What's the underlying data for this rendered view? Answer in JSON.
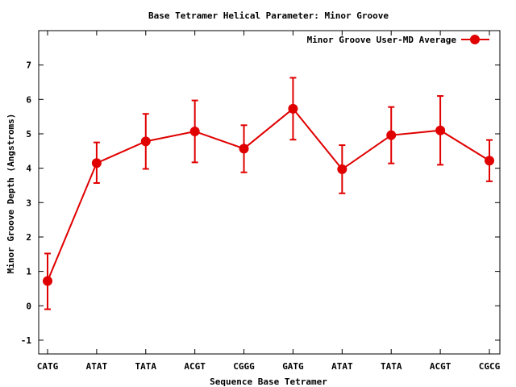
{
  "chart_data": {
    "type": "line",
    "title": "Base Tetramer Helical Parameter: Minor Groove",
    "xlabel": "Sequence Base Tetramer",
    "ylabel": "Minor Groove Depth (Angstroms)",
    "categories": [
      "CATG",
      "ATAT",
      "TATA",
      "ACGT",
      "CGGG",
      "GATG",
      "ATAT",
      "TATA",
      "ACGT",
      "CGCG"
    ],
    "ylim": [
      -1.4,
      8
    ],
    "yticks": [
      "-1",
      "0",
      "1",
      "2",
      "3",
      "4",
      "5",
      "6",
      "7"
    ],
    "grid": false,
    "legend_position": "top-right",
    "color": "#e00000",
    "series": [
      {
        "name": "Minor Groove User-MD Average",
        "values": [
          0.72,
          4.15,
          4.78,
          5.07,
          4.57,
          5.73,
          3.97,
          4.96,
          5.1,
          4.22
        ],
        "error_low": [
          -0.1,
          3.57,
          3.98,
          4.17,
          3.88,
          4.83,
          3.27,
          4.14,
          4.1,
          3.62
        ],
        "error_high": [
          1.52,
          4.75,
          5.58,
          5.97,
          5.25,
          6.63,
          4.67,
          5.78,
          6.1,
          4.82
        ]
      }
    ]
  }
}
